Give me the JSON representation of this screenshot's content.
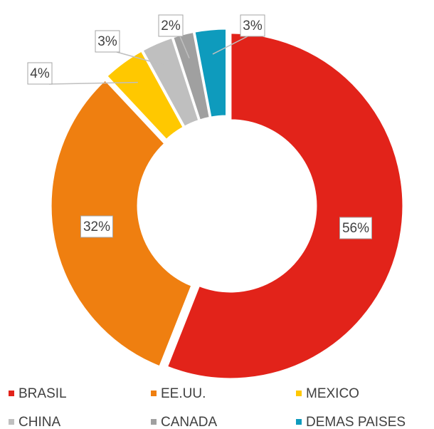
{
  "chart_data": {
    "type": "donut",
    "categories": [
      "BRASIL",
      "EE.UU.",
      "MEXICO",
      "CHINA",
      "CANADA",
      "DEMAS PAISES"
    ],
    "values": [
      56,
      32,
      4,
      3,
      2,
      3
    ],
    "value_labels": [
      "56%",
      "32%",
      "4%",
      "3%",
      "2%",
      "3%"
    ],
    "colors": [
      "#e2231a",
      "#ef7f10",
      "#ffc800",
      "#bfbfbf",
      "#a0a0a0",
      "#0e9bbd"
    ],
    "legend": "bottom"
  }
}
